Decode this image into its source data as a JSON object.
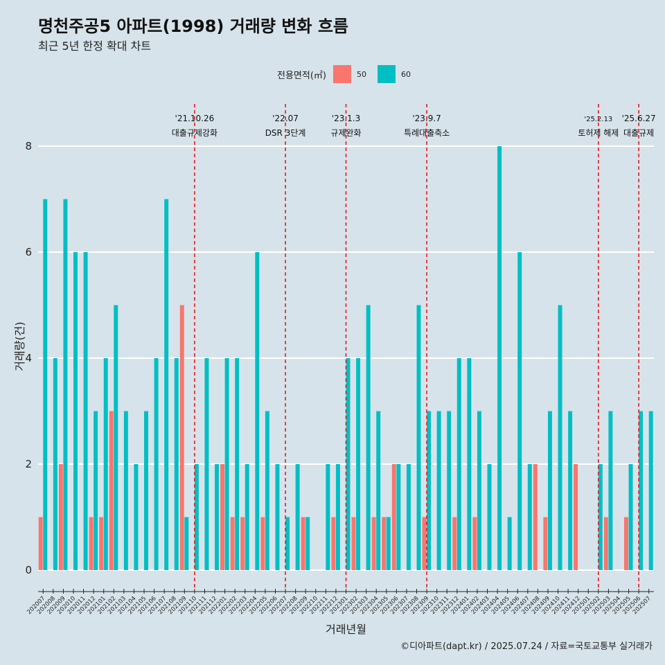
{
  "title": "명천주공5 아파트(1998) 거래량 변화 흐름",
  "subtitle": "최근 5년 한정 확대 차트",
  "caption": "©디아파트(dapt.kr) / 2025.07.24 / 자료=국토교통부 실거래가",
  "legend": {
    "title": "전용면적(㎡)",
    "items": [
      {
        "label": "50",
        "color": "#F8766D"
      },
      {
        "label": "60",
        "color": "#00BFC4"
      }
    ]
  },
  "chart_data": {
    "type": "bar",
    "stacked": false,
    "xlabel": "거래년월",
    "ylabel": "거래량(건)",
    "ylim": [
      0,
      8.6
    ],
    "yticks": [
      0,
      2,
      4,
      6,
      8
    ],
    "categories": [
      "202007",
      "202008",
      "202009",
      "202010",
      "202011",
      "202012",
      "202101",
      "202102",
      "202103",
      "202104",
      "202105",
      "202106",
      "202107",
      "202108",
      "202109",
      "202110",
      "202111",
      "202112",
      "202201",
      "202202",
      "202203",
      "202204",
      "202205",
      "202206",
      "202207",
      "202208",
      "202209",
      "202210",
      "202211",
      "202212",
      "202301",
      "202302",
      "202303",
      "202304",
      "202305",
      "202306",
      "202307",
      "202308",
      "202309",
      "202310",
      "202311",
      "202312",
      "202401",
      "202402",
      "202403",
      "202404",
      "202405",
      "202406",
      "202407",
      "202408",
      "202409",
      "202410",
      "202411",
      "202412",
      "202501",
      "202502",
      "202503",
      "202504",
      "202505",
      "202506",
      "202507"
    ],
    "series": [
      {
        "name": "50",
        "color": "#F8766D",
        "values": [
          1,
          0,
          2,
          0,
          0,
          1,
          1,
          3,
          0,
          0,
          0,
          0,
          0,
          0,
          5,
          0,
          0,
          0,
          2,
          1,
          1,
          0,
          1,
          0,
          0,
          0,
          1,
          0,
          0,
          1,
          0,
          1,
          0,
          1,
          1,
          2,
          0,
          0,
          1,
          0,
          0,
          1,
          0,
          1,
          0,
          0,
          0,
          0,
          0,
          2,
          1,
          0,
          0,
          2,
          0,
          0,
          1,
          0,
          1,
          0,
          0
        ]
      },
      {
        "name": "60",
        "color": "#00BFC4",
        "values": [
          7,
          4,
          7,
          6,
          6,
          3,
          4,
          5,
          3,
          2,
          3,
          4,
          7,
          4,
          1,
          2,
          4,
          2,
          4,
          4,
          2,
          6,
          3,
          2,
          1,
          2,
          1,
          0,
          2,
          2,
          4,
          4,
          5,
          3,
          1,
          2,
          2,
          5,
          3,
          3,
          3,
          4,
          4,
          3,
          2,
          8,
          1,
          6,
          2,
          0,
          3,
          5,
          3,
          0,
          0,
          2,
          3,
          0,
          2,
          3,
          3
        ]
      }
    ],
    "events": [
      {
        "date": "'21.10.26",
        "label": "대출규제강화",
        "category": "202110"
      },
      {
        "date": "'22.07",
        "label": "DSR 3단계",
        "category": "202207"
      },
      {
        "date": "'23.1.3",
        "label": "규제완화",
        "category": "202301"
      },
      {
        "date": "'23.9.7",
        "label": "특례대출축소",
        "category": "202309"
      },
      {
        "date": "'25.2.13",
        "label": "토허제 해제",
        "category": "202502"
      },
      {
        "date": "'25.6.27",
        "label": "대출규제",
        "category": "202506"
      }
    ]
  }
}
